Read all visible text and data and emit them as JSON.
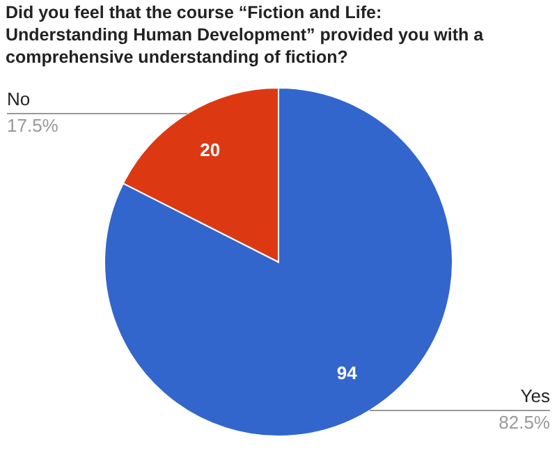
{
  "chart_data": {
    "type": "pie",
    "title": "Did you feel that the course “Fiction and Life: Understanding Human Development” provided you with a comprehensive understanding of fiction?",
    "categories": [
      "Yes",
      "No"
    ],
    "values": [
      94,
      20
    ],
    "colors": [
      "#3366cc",
      "#dc3912"
    ],
    "data_labels": true,
    "annotations": [
      "82.5%",
      "17.5%"
    ]
  }
}
